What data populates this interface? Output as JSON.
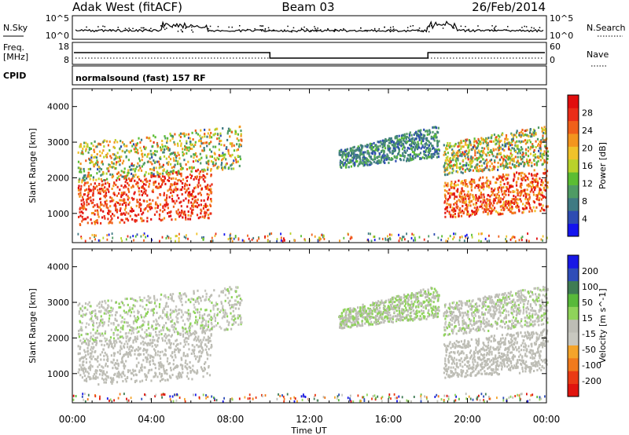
{
  "header": {
    "station": "Adak West (fitACF)",
    "beam": "Beam 03",
    "date": "26/Feb/2014"
  },
  "strip_labels": {
    "nsky": "N.Sky",
    "nsearch": "N.Search",
    "freq_line1": "Freq.",
    "freq_line2": "[MHz]",
    "nave": "Nave",
    "cpid": "CPID"
  },
  "strip_ticks": {
    "noise_left": [
      "10^5",
      "10^0"
    ],
    "noise_right": [
      "10^5",
      "10^0"
    ],
    "freq": [
      "18",
      "8"
    ],
    "nave": [
      "60",
      "0"
    ]
  },
  "cpid_text": "normalsound (fast) 157 RF",
  "colors": {
    "power": [
      "#1414ee",
      "#2e4cb2",
      "#3f7a83",
      "#4f9b64",
      "#5bbd33",
      "#b9d22b",
      "#f0c22a",
      "#f3951e",
      "#f0601a",
      "#ea2d18",
      "#e10e0e"
    ],
    "velocity": [
      "#e0140e",
      "#ea3a14",
      "#f07a1c",
      "#f4a42a",
      "#c8c8c0",
      "#bdbdb5",
      "#8fd35a",
      "#58b93a",
      "#3f7c54",
      "#2f4db8",
      "#1818e6"
    ]
  },
  "chart_data": [
    {
      "type": "heatmap",
      "title": "Power",
      "xlabel": "Time UT",
      "ylabel": "Slant Range [km]",
      "xlim": [
        "00:00",
        "24:00"
      ],
      "ylim": [
        180,
        4500
      ],
      "x_ticks": [
        "00:00",
        "04:00",
        "08:00",
        "12:00",
        "16:00",
        "20:00",
        "00:00"
      ],
      "y_ticks": [
        "1000",
        "2000",
        "3000",
        "4000"
      ],
      "colorbar_label": "Power [dB]",
      "colorbar_ticks": [
        "4",
        "8",
        "12",
        "16",
        "20",
        "24",
        "28"
      ],
      "colorbar_range": [
        0,
        30
      ],
      "scatter_regions": [
        {
          "t": [
            0.3,
            7.0
          ],
          "range_min": [
            700,
            900
          ],
          "range_max": [
            1900,
            2300
          ],
          "value_range": [
            20,
            30
          ]
        },
        {
          "t": [
            0.3,
            8.5
          ],
          "range_min": [
            1900,
            2300
          ],
          "range_max": [
            3000,
            3500
          ],
          "value_range": [
            5,
            25
          ]
        },
        {
          "t": [
            13.5,
            18.5
          ],
          "range_min": [
            2300,
            2600
          ],
          "range_max": [
            2800,
            3500
          ],
          "value_range": [
            4,
            12
          ]
        },
        {
          "t": [
            18.8,
            24.0
          ],
          "range_min": [
            900,
            1100
          ],
          "range_max": [
            1900,
            2300
          ],
          "value_range": [
            18,
            30
          ]
        },
        {
          "t": [
            18.8,
            24.0
          ],
          "range_min": [
            2100,
            2400
          ],
          "range_max": [
            3000,
            3500
          ],
          "value_range": [
            5,
            25
          ]
        }
      ]
    },
    {
      "type": "heatmap",
      "title": "Velocity",
      "xlabel": "Time UT",
      "ylabel": "Slant Range [km]",
      "xlim": [
        "00:00",
        "24:00"
      ],
      "ylim": [
        180,
        4500
      ],
      "x_ticks": [
        "00:00",
        "04:00",
        "08:00",
        "12:00",
        "16:00",
        "20:00",
        "00:00"
      ],
      "y_ticks": [
        "1000",
        "2000",
        "3000",
        "4000"
      ],
      "colorbar_label": "Velocity [m s^-1]",
      "colorbar_ticks": [
        "200",
        "100",
        "50",
        "15",
        "-15",
        "-50",
        "-100",
        "-200"
      ],
      "colorbar_range": [
        -250,
        250
      ],
      "scatter_regions": [
        {
          "t": [
            0.3,
            7.0
          ],
          "range_min": [
            700,
            900
          ],
          "range_max": [
            1900,
            2300
          ],
          "value_range": [
            -15,
            15
          ]
        },
        {
          "t": [
            0.3,
            8.5
          ],
          "range_min": [
            1900,
            2300
          ],
          "range_max": [
            3000,
            3500
          ],
          "value_range": [
            -60,
            60
          ]
        },
        {
          "t": [
            13.5,
            18.5
          ],
          "range_min": [
            2300,
            2600
          ],
          "range_max": [
            2800,
            3500
          ],
          "value_range": [
            -15,
            50
          ]
        },
        {
          "t": [
            18.8,
            24.0
          ],
          "range_min": [
            900,
            1100
          ],
          "range_max": [
            1900,
            2300
          ],
          "value_range": [
            -15,
            15
          ]
        },
        {
          "t": [
            18.8,
            24.0
          ],
          "range_min": [
            2100,
            2400
          ],
          "range_max": [
            3000,
            3500
          ],
          "value_range": [
            -40,
            40
          ]
        }
      ]
    }
  ]
}
